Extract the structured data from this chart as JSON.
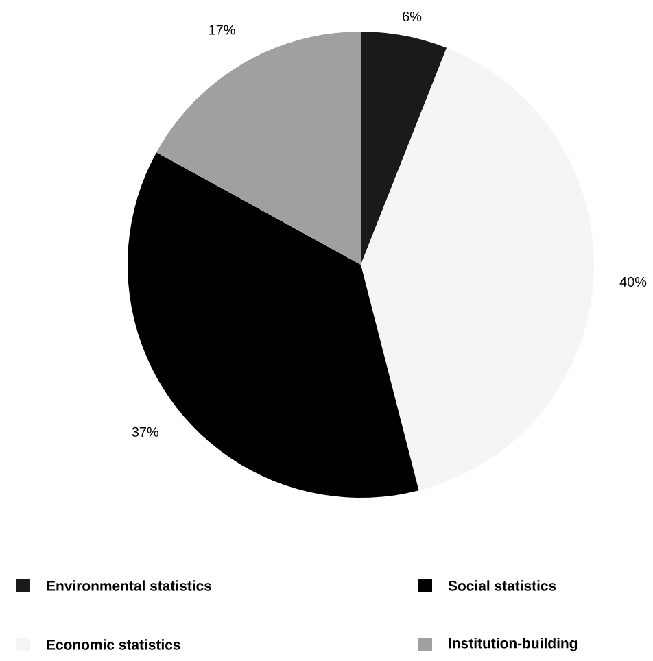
{
  "chart_data": {
    "type": "pie",
    "categories": [
      "Environmental statistics",
      "Economic statistics",
      "Social statistics",
      "Institution-building"
    ],
    "values": [
      6,
      40,
      37,
      17
    ],
    "colors": [
      "#1a1a1a",
      "#f5f5f5",
      "#000000",
      "#a0a0a0"
    ],
    "value_labels": [
      "6%",
      "40%",
      "37%",
      "17%"
    ],
    "legend": "bottom"
  }
}
